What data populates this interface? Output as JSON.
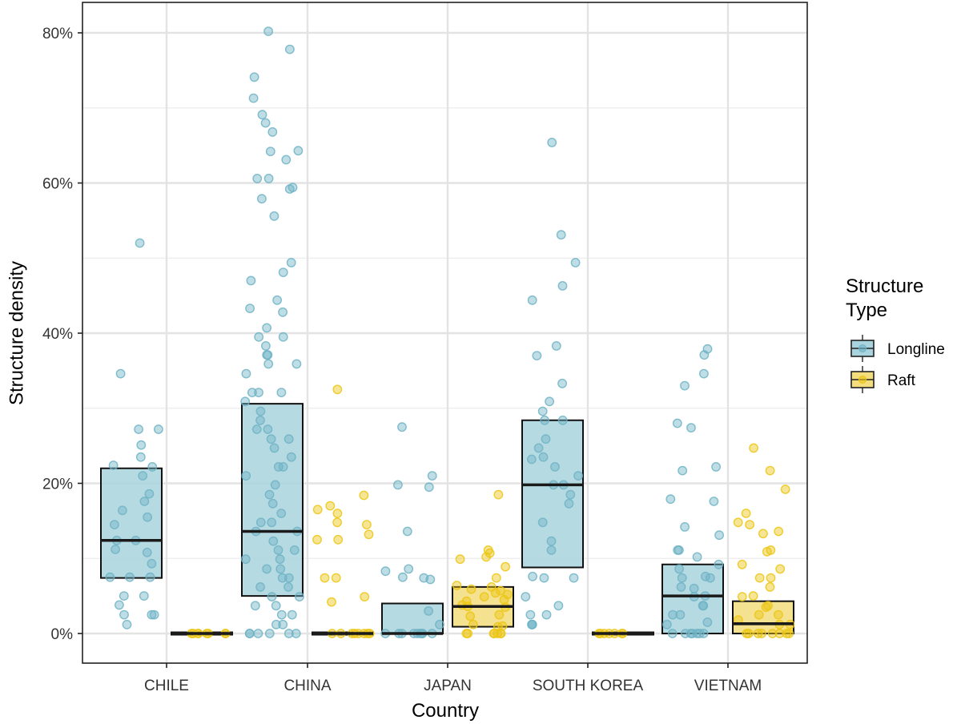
{
  "chart_data": {
    "type": "boxplot_jitter",
    "title": "",
    "xlabel": "Country",
    "ylabel": "Structure density",
    "ylim": [
      -4,
      84
    ],
    "yticks": [
      0,
      20,
      40,
      60,
      80
    ],
    "ytick_labels": [
      "0%",
      "20%",
      "40%",
      "60%",
      "80%"
    ],
    "grid": true,
    "categories": [
      "CHILE",
      "CHINA",
      "JAPAN",
      "SOUTH KOREA",
      "VIETNAM"
    ],
    "legend": {
      "title_lines": [
        "Structure",
        "Type"
      ],
      "placement": "right",
      "entries": [
        {
          "name": "Longline",
          "fill": "#a9d3dd",
          "point": "#6fb3c6"
        },
        {
          "name": "Raft",
          "fill": "#f3dd7c",
          "point": "#ecc514"
        }
      ]
    },
    "series": [
      {
        "name": "Longline",
        "boxes": [
          {
            "category": "CHILE",
            "q1": 7.4,
            "median": 12.4,
            "q3": 22.0
          },
          {
            "category": "CHINA",
            "q1": 5.0,
            "median": 13.6,
            "q3": 30.6
          },
          {
            "category": "JAPAN",
            "q1": 0.0,
            "median": 0.0,
            "q3": 4.0
          },
          {
            "category": "SOUTH KOREA",
            "q1": 8.8,
            "median": 19.8,
            "q3": 28.4
          },
          {
            "category": "VIETNAM",
            "q1": 0.0,
            "median": 5.0,
            "q3": 9.2
          }
        ],
        "points": {
          "CHILE": [
            52.0,
            34.6,
            27.2,
            27.2,
            25.1,
            23.5,
            22.4,
            22.2,
            21.0,
            18.6,
            17.6,
            16.4,
            15.5,
            14.5,
            12.4,
            12.4,
            11.2,
            10.8,
            9.3,
            7.5,
            7.5,
            7.5,
            5.0,
            5.0,
            3.8,
            2.5,
            2.5,
            2.5,
            1.2
          ],
          "CHINA": [
            80.2,
            77.8,
            74.1,
            71.3,
            69.1,
            68.0,
            66.8,
            64.3,
            64.2,
            63.1,
            60.6,
            60.6,
            59.4,
            59.2,
            57.9,
            55.6,
            49.4,
            48.1,
            47.0,
            44.4,
            43.3,
            42.8,
            40.7,
            39.5,
            39.5,
            38.3,
            37.1,
            37.1,
            35.9,
            35.9,
            34.6,
            32.1,
            32.1,
            32.1,
            30.9,
            29.6,
            28.4,
            27.2,
            27.2,
            25.9,
            25.9,
            24.7,
            23.5,
            22.2,
            22.2,
            21.0,
            19.8,
            18.5,
            17.3,
            16.0,
            14.8,
            14.8,
            13.6,
            13.6,
            12.3,
            11.1,
            11.1,
            9.9,
            9.9,
            8.6,
            8.6,
            7.4,
            7.4,
            6.2,
            6.2,
            4.9,
            4.9,
            3.7,
            3.7,
            2.5,
            2.5,
            1.2,
            1.2,
            0.0,
            0.0,
            0.0,
            0.0,
            0.0,
            0.0
          ],
          "JAPAN": [
            27.5,
            21.0,
            19.8,
            19.5,
            13.6,
            8.6,
            8.3,
            7.5,
            7.4,
            7.2,
            3.0,
            1.2,
            0.0,
            0.0,
            0.0,
            0.0,
            0.0,
            0.0,
            0.0,
            0.0,
            0.0
          ],
          "SOUTH KOREA": [
            65.4,
            53.1,
            49.4,
            46.3,
            44.4,
            38.3,
            37.0,
            33.3,
            30.9,
            29.6,
            28.4,
            28.4,
            25.9,
            24.7,
            23.5,
            23.2,
            22.2,
            21.0,
            19.8,
            19.8,
            18.5,
            17.3,
            14.8,
            12.3,
            11.1,
            7.6,
            7.4,
            7.4,
            4.9,
            3.7,
            2.5,
            2.5,
            1.2,
            1.2,
            1.2
          ],
          "VIETNAM": [
            37.9,
            37.1,
            34.6,
            33.0,
            28.0,
            27.4,
            22.2,
            21.7,
            17.9,
            17.6,
            14.2,
            13.1,
            11.1,
            11.1,
            10.2,
            9.2,
            8.6,
            7.6,
            7.4,
            7.4,
            6.2,
            6.0,
            5.0,
            4.9,
            3.7,
            3.7,
            2.5,
            2.5,
            1.5,
            1.2,
            0.0,
            0.0,
            0.0,
            0.0,
            0.0,
            0.0,
            0.0
          ]
        }
      },
      {
        "name": "Raft",
        "boxes": [
          {
            "category": "CHILE",
            "q1": 0.0,
            "median": 0.0,
            "q3": 0.0
          },
          {
            "category": "CHINA",
            "q1": 0.0,
            "median": 0.0,
            "q3": 0.0
          },
          {
            "category": "JAPAN",
            "q1": 0.9,
            "median": 3.6,
            "q3": 6.2
          },
          {
            "category": "SOUTH KOREA",
            "q1": 0.0,
            "median": 0.0,
            "q3": 0.0
          },
          {
            "category": "VIETNAM",
            "q1": 0.0,
            "median": 1.3,
            "q3": 4.3
          }
        ],
        "points": {
          "CHILE": [
            0.0,
            0.0,
            0.0,
            0.0,
            0.0,
            0.0,
            0.0,
            0.0
          ],
          "CHINA": [
            32.5,
            18.4,
            17.0,
            16.5,
            16.0,
            14.8,
            14.5,
            13.2,
            12.5,
            12.5,
            7.4,
            7.4,
            4.9,
            4.2,
            0.0,
            0.0,
            0.0,
            0.0,
            0.0,
            0.0,
            0.0,
            0.0
          ],
          "JAPAN": [
            18.5,
            11.1,
            10.7,
            10.2,
            9.9,
            8.9,
            7.4,
            6.4,
            6.2,
            5.9,
            5.7,
            5.4,
            5.2,
            4.9,
            4.5,
            4.3,
            3.8,
            3.6,
            3.5,
            2.5,
            2.3,
            1.2,
            1.0,
            0.9,
            0.0,
            0.0,
            0.0,
            0.0,
            0.0,
            0.0,
            0.0
          ],
          "SOUTH KOREA": [
            0.0,
            0.0,
            0.0,
            0.0,
            0.0,
            0.0,
            0.0
          ],
          "VIETNAM": [
            24.7,
            21.7,
            19.2,
            16.0,
            14.8,
            14.5,
            13.6,
            13.3,
            11.1,
            10.9,
            9.2,
            8.6,
            7.4,
            7.4,
            6.2,
            5.0,
            4.9,
            3.7,
            3.5,
            2.5,
            2.5,
            1.8,
            1.2,
            1.2,
            0.0,
            0.0,
            0.0,
            0.0,
            0.0,
            0.0,
            0.0,
            0.0
          ]
        }
      }
    ]
  }
}
